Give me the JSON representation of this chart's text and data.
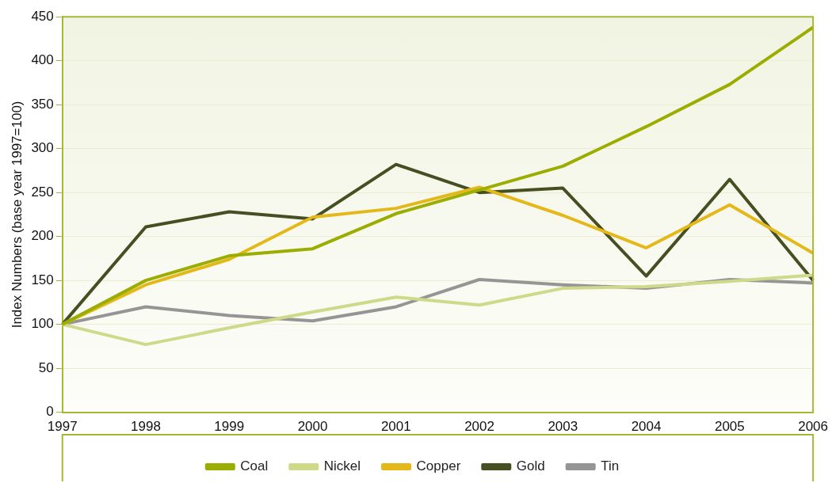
{
  "chart_data": {
    "type": "line",
    "ylabel": "Index Numbers (base year 1997=100)",
    "categories": [
      "1997",
      "1998",
      "1999",
      "2000",
      "2001",
      "2002",
      "2003",
      "2004",
      "2005",
      "2006"
    ],
    "series": [
      {
        "name": "Coal",
        "color": "#9aad00",
        "values": [
          100,
          150,
          178,
          186,
          226,
          253,
          280,
          325,
          373,
          438
        ]
      },
      {
        "name": "Nickel",
        "color": "#cfd98a",
        "values": [
          100,
          77,
          96,
          114,
          131,
          122,
          141,
          143,
          149,
          156
        ]
      },
      {
        "name": "Copper",
        "color": "#e3b818",
        "values": [
          100,
          145,
          174,
          222,
          232,
          256,
          224,
          187,
          236,
          181
        ]
      },
      {
        "name": "Gold",
        "color": "#464f22",
        "values": [
          100,
          211,
          228,
          220,
          282,
          250,
          255,
          155,
          265,
          150
        ]
      },
      {
        "name": "Tin",
        "color": "#959595",
        "values": [
          100,
          120,
          110,
          104,
          120,
          151,
          145,
          141,
          151,
          147
        ]
      }
    ],
    "ylim": [
      0,
      450
    ],
    "yticks": [
      0,
      50,
      100,
      150,
      200,
      250,
      300,
      350,
      400,
      450
    ],
    "grid": "y",
    "legend": "bottom",
    "marker": "none",
    "line_style": "solid"
  }
}
